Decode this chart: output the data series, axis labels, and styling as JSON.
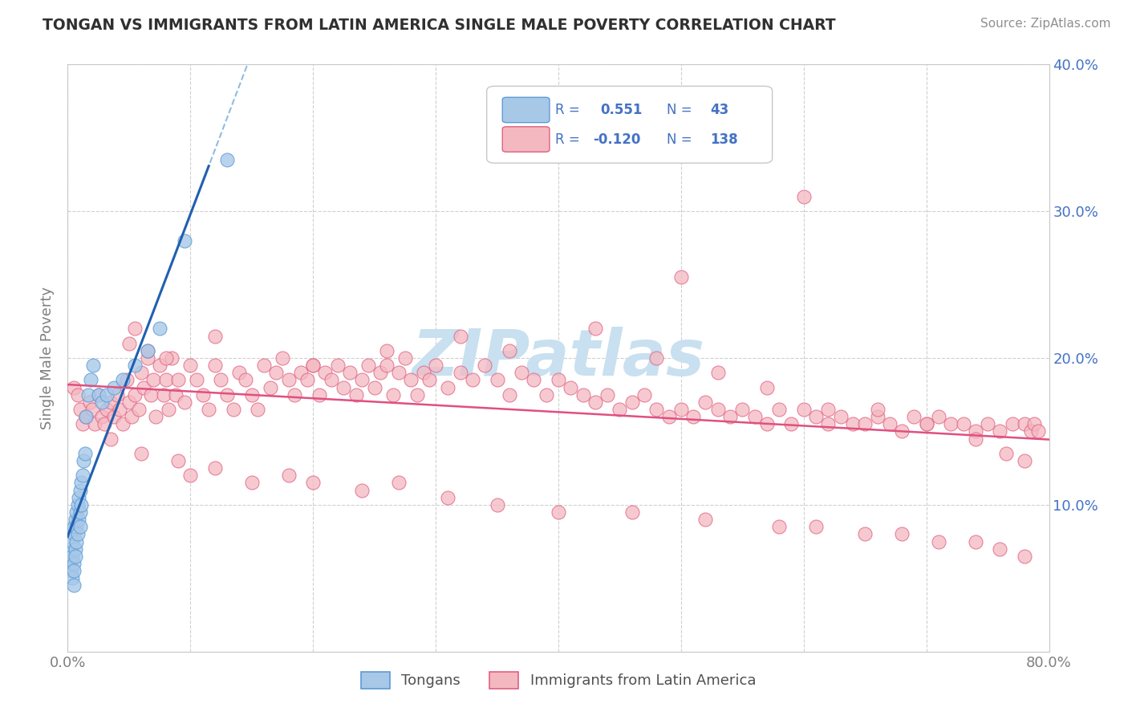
{
  "title": "TONGAN VS IMMIGRANTS FROM LATIN AMERICA SINGLE MALE POVERTY CORRELATION CHART",
  "source": "Source: ZipAtlas.com",
  "ylabel": "Single Male Poverty",
  "xlim": [
    0,
    0.8
  ],
  "ylim": [
    0,
    0.4
  ],
  "xtick_positions": [
    0.0,
    0.1,
    0.2,
    0.3,
    0.4,
    0.5,
    0.6,
    0.7,
    0.8
  ],
  "ytick_positions": [
    0.0,
    0.1,
    0.2,
    0.3,
    0.4
  ],
  "xtick_labels": [
    "0.0%",
    "",
    "",
    "",
    "",
    "",
    "",
    "",
    "80.0%"
  ],
  "ytick_right_labels": [
    "",
    "10.0%",
    "20.0%",
    "30.0%",
    "40.0%"
  ],
  "legend_r1": {
    "r": "0.551",
    "n": "43"
  },
  "legend_r2": {
    "r": "-0.120",
    "n": "138"
  },
  "blue_marker_face": "#a8c8e8",
  "blue_marker_edge": "#5b9bd5",
  "pink_marker_face": "#f4b8c1",
  "pink_marker_edge": "#e06080",
  "blue_line_color": "#2060b0",
  "pink_line_color": "#e05080",
  "dash_line_color": "#90bce0",
  "legend_text_color": "#4472c4",
  "watermark_color": "#c8e0f0",
  "title_color": "#303030",
  "source_color": "#909090",
  "axis_color": "#808080",
  "grid_color": "#d0d0d0",
  "tongans_x": [
    0.002,
    0.003,
    0.003,
    0.004,
    0.004,
    0.004,
    0.005,
    0.005,
    0.005,
    0.005,
    0.005,
    0.006,
    0.006,
    0.006,
    0.007,
    0.007,
    0.007,
    0.008,
    0.008,
    0.009,
    0.009,
    0.01,
    0.01,
    0.01,
    0.011,
    0.011,
    0.012,
    0.013,
    0.014,
    0.015,
    0.017,
    0.019,
    0.021,
    0.025,
    0.028,
    0.032,
    0.038,
    0.045,
    0.055,
    0.065,
    0.075,
    0.095,
    0.13
  ],
  "tongans_y": [
    0.06,
    0.055,
    0.07,
    0.065,
    0.075,
    0.05,
    0.08,
    0.085,
    0.06,
    0.055,
    0.045,
    0.09,
    0.07,
    0.065,
    0.095,
    0.085,
    0.075,
    0.1,
    0.08,
    0.105,
    0.09,
    0.11,
    0.095,
    0.085,
    0.115,
    0.1,
    0.12,
    0.13,
    0.135,
    0.16,
    0.175,
    0.185,
    0.195,
    0.175,
    0.17,
    0.175,
    0.18,
    0.185,
    0.195,
    0.205,
    0.22,
    0.28,
    0.335
  ],
  "latin_x": [
    0.005,
    0.008,
    0.01,
    0.012,
    0.015,
    0.018,
    0.02,
    0.022,
    0.025,
    0.028,
    0.03,
    0.032,
    0.035,
    0.038,
    0.04,
    0.042,
    0.045,
    0.048,
    0.05,
    0.052,
    0.055,
    0.058,
    0.06,
    0.062,
    0.065,
    0.068,
    0.07,
    0.072,
    0.075,
    0.078,
    0.08,
    0.082,
    0.085,
    0.088,
    0.09,
    0.095,
    0.1,
    0.105,
    0.11,
    0.115,
    0.12,
    0.125,
    0.13,
    0.135,
    0.14,
    0.145,
    0.15,
    0.155,
    0.16,
    0.165,
    0.17,
    0.175,
    0.18,
    0.185,
    0.19,
    0.195,
    0.2,
    0.205,
    0.21,
    0.215,
    0.22,
    0.225,
    0.23,
    0.235,
    0.24,
    0.245,
    0.25,
    0.255,
    0.26,
    0.265,
    0.27,
    0.275,
    0.28,
    0.285,
    0.29,
    0.295,
    0.3,
    0.31,
    0.32,
    0.33,
    0.34,
    0.35,
    0.36,
    0.37,
    0.38,
    0.39,
    0.4,
    0.41,
    0.42,
    0.43,
    0.44,
    0.45,
    0.46,
    0.47,
    0.48,
    0.49,
    0.5,
    0.51,
    0.52,
    0.53,
    0.54,
    0.55,
    0.56,
    0.57,
    0.58,
    0.59,
    0.6,
    0.61,
    0.62,
    0.63,
    0.64,
    0.65,
    0.66,
    0.67,
    0.68,
    0.69,
    0.7,
    0.71,
    0.72,
    0.73,
    0.74,
    0.75,
    0.76,
    0.77,
    0.78,
    0.785,
    0.788,
    0.791
  ],
  "latin_y": [
    0.18,
    0.175,
    0.165,
    0.155,
    0.16,
    0.17,
    0.165,
    0.155,
    0.175,
    0.16,
    0.155,
    0.165,
    0.17,
    0.16,
    0.175,
    0.165,
    0.155,
    0.185,
    0.17,
    0.16,
    0.175,
    0.165,
    0.19,
    0.18,
    0.2,
    0.175,
    0.185,
    0.16,
    0.195,
    0.175,
    0.185,
    0.165,
    0.2,
    0.175,
    0.185,
    0.17,
    0.195,
    0.185,
    0.175,
    0.165,
    0.195,
    0.185,
    0.175,
    0.165,
    0.19,
    0.185,
    0.175,
    0.165,
    0.195,
    0.18,
    0.19,
    0.2,
    0.185,
    0.175,
    0.19,
    0.185,
    0.195,
    0.175,
    0.19,
    0.185,
    0.195,
    0.18,
    0.19,
    0.175,
    0.185,
    0.195,
    0.18,
    0.19,
    0.195,
    0.175,
    0.19,
    0.2,
    0.185,
    0.175,
    0.19,
    0.185,
    0.195,
    0.18,
    0.19,
    0.185,
    0.195,
    0.185,
    0.175,
    0.19,
    0.185,
    0.175,
    0.185,
    0.18,
    0.175,
    0.17,
    0.175,
    0.165,
    0.17,
    0.175,
    0.165,
    0.16,
    0.165,
    0.16,
    0.17,
    0.165,
    0.16,
    0.165,
    0.16,
    0.155,
    0.165,
    0.155,
    0.165,
    0.16,
    0.155,
    0.16,
    0.155,
    0.155,
    0.16,
    0.155,
    0.15,
    0.16,
    0.155,
    0.16,
    0.155,
    0.155,
    0.15,
    0.155,
    0.15,
    0.155,
    0.155,
    0.15,
    0.155,
    0.15
  ],
  "latin_outlier_x": [
    0.035,
    0.06,
    0.09,
    0.1,
    0.12,
    0.15,
    0.18,
    0.2,
    0.24,
    0.27,
    0.31,
    0.35,
    0.4,
    0.46,
    0.52,
    0.58,
    0.61,
    0.65,
    0.68,
    0.71,
    0.74,
    0.76,
    0.78,
    0.05,
    0.08,
    0.5,
    0.6,
    0.055,
    0.065,
    0.12,
    0.2,
    0.26,
    0.32,
    0.36,
    0.43,
    0.48,
    0.53,
    0.57,
    0.62,
    0.66,
    0.7,
    0.74,
    0.765,
    0.78
  ],
  "latin_outlier_y": [
    0.145,
    0.135,
    0.13,
    0.12,
    0.125,
    0.115,
    0.12,
    0.115,
    0.11,
    0.115,
    0.105,
    0.1,
    0.095,
    0.095,
    0.09,
    0.085,
    0.085,
    0.08,
    0.08,
    0.075,
    0.075,
    0.07,
    0.065,
    0.21,
    0.2,
    0.255,
    0.31,
    0.22,
    0.205,
    0.215,
    0.195,
    0.205,
    0.215,
    0.205,
    0.22,
    0.2,
    0.19,
    0.18,
    0.165,
    0.165,
    0.155,
    0.145,
    0.135,
    0.13
  ]
}
